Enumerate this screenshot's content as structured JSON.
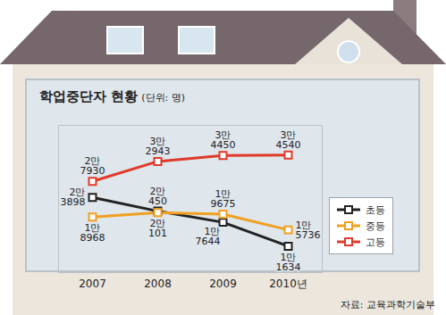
{
  "chart_data": {
    "type": "line",
    "title": "학업중단자 현황",
    "subtitle": "(단위: 명)",
    "source": "자료: 교육과학기술부",
    "categories": [
      "2007",
      "2008",
      "2009",
      "2010년"
    ],
    "series": [
      {
        "name": "초등",
        "color": "#222222",
        "marker": "square",
        "values": [
          23898,
          20450,
          17644,
          11634
        ],
        "value_labels": [
          "2만 3898",
          "2만 450",
          "1만 7644",
          "1만 1634"
        ]
      },
      {
        "name": "중등",
        "color": "#f0a020",
        "marker": "square",
        "values": [
          18968,
          20101,
          19675,
          15736
        ],
        "value_labels": [
          "1만 8968",
          "2만 101",
          "1만 9675",
          "1만 5736"
        ]
      },
      {
        "name": "고등",
        "color": "#e03a2a",
        "marker": "square",
        "values": [
          27930,
          32943,
          34450,
          34540
        ],
        "value_labels": [
          "2만 7930",
          "3만 2943",
          "3만 4450",
          "3만 4540"
        ]
      }
    ],
    "ylim": [
      5000,
      42000
    ],
    "grid": false,
    "data_labels": true,
    "tick_labels": "x",
    "legend": "lower right"
  }
}
